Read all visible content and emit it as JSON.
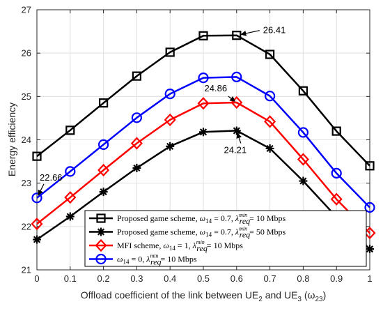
{
  "chart_data": {
    "type": "line",
    "xlabel_pre": "Offload coefficient of the link between UE",
    "xlabel_sub1": "2",
    "xlabel_mid": " and UE",
    "xlabel_sub2": "3",
    "xlabel_post": " (ω",
    "xlabel_sub3": "23",
    "xlabel_end": ")",
    "ylabel": "Energy efficiency",
    "xlim": [
      0,
      1
    ],
    "ylim": [
      21,
      27
    ],
    "xticks": [
      "0",
      "0.1",
      "0.2",
      "0.3",
      "0.4",
      "0.5",
      "0.6",
      "0.7",
      "0.8",
      "0.9",
      "1"
    ],
    "yticks": [
      "21",
      "22",
      "23",
      "24",
      "25",
      "26",
      "27"
    ],
    "grid": true,
    "legend_position": "bottom-right",
    "x": [
      0,
      0.1,
      0.2,
      0.3,
      0.4,
      0.5,
      0.6,
      0.7,
      0.8,
      0.9,
      1
    ],
    "series": [
      {
        "id": "s1",
        "color": "#000000",
        "marker": "square",
        "values": [
          23.62,
          24.22,
          24.85,
          25.47,
          26.02,
          26.4,
          26.41,
          25.97,
          25.13,
          24.2,
          23.4
        ],
        "legend": {
          "a": "Proposed game scheme, ",
          "b": "ω",
          "bs": "14",
          "c": " = 0.7, ",
          "d": "λ",
          "dsup": "min",
          "dsub": "req",
          "e": " = 10 Mbps"
        }
      },
      {
        "id": "s2",
        "color": "#000000",
        "marker": "asterisk",
        "values": [
          21.7,
          22.23,
          22.8,
          23.35,
          23.85,
          24.18,
          24.21,
          23.8,
          23.05,
          22.22,
          21.48
        ],
        "legend": {
          "a": "Proposed game scheme, ",
          "b": "ω",
          "bs": "14",
          "c": " = 0.7, ",
          "d": "λ",
          "dsup": "min",
          "dsub": "req",
          "e": " = 50 Mbps"
        }
      },
      {
        "id": "s3",
        "color": "#ff0000",
        "marker": "diamond",
        "values": [
          22.06,
          22.67,
          23.3,
          23.92,
          24.46,
          24.84,
          24.86,
          24.42,
          23.55,
          22.63,
          21.85
        ],
        "legend": {
          "a": "MFI scheme, ",
          "b": "ω",
          "bs": "14",
          "c": " = 1, ",
          "d": "λ",
          "dsup": "min",
          "dsub": "req",
          "e": " = 10 Mbps"
        }
      },
      {
        "id": "s4",
        "color": "#0000ff",
        "marker": "circle",
        "values": [
          22.66,
          23.27,
          23.89,
          24.51,
          25.06,
          25.43,
          25.45,
          25.01,
          24.17,
          23.23,
          22.44
        ],
        "legend": {
          "a": "",
          "b": "ω",
          "bs": "14",
          "c": " = 0, ",
          "d": "λ",
          "dsup": "min",
          "dsub": "req",
          "e": " = 10 Mbps"
        }
      }
    ],
    "annotations": [
      {
        "text": "26.41",
        "series": 0,
        "index": 6
      },
      {
        "text": "24.86",
        "series": 2,
        "index": 6
      },
      {
        "text": "24.21",
        "series": 1,
        "index": 6
      },
      {
        "text": "22.66",
        "series": 3,
        "index": 0
      }
    ]
  }
}
